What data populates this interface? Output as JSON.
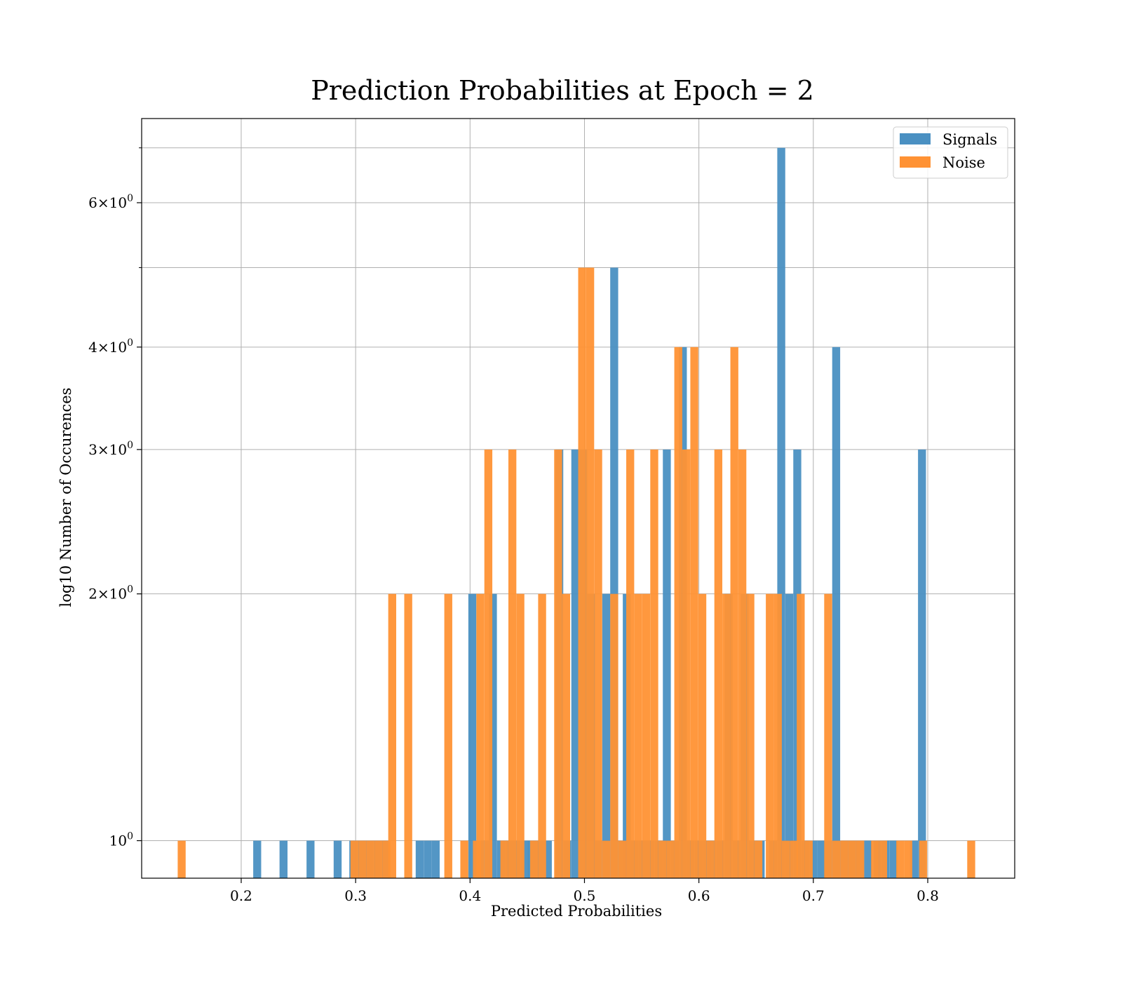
{
  "chart_data": {
    "type": "bar",
    "subtype": "overlapping histogram",
    "title": "Prediction Probabilities at Epoch = 2",
    "xlabel": "Predicted Probabilities",
    "ylabel": "log10 Number of Occurences",
    "yscale": "log",
    "xlim": [
      0.113,
      0.876
    ],
    "ylim": [
      0.9,
      7.6
    ],
    "xticks": [
      "0.2",
      "0.3",
      "0.4",
      "0.5",
      "0.6",
      "0.7",
      "0.8"
    ],
    "yticks": [
      {
        "base": "10",
        "exp": "0",
        "value": 1
      },
      {
        "base": "2×10",
        "exp": "0",
        "value": 2
      },
      {
        "base": "3×10",
        "exp": "0",
        "value": 3
      },
      {
        "base": "4×10",
        "exp": "0",
        "value": 4
      },
      {
        "base": "6×10",
        "exp": "0",
        "value": 6
      }
    ],
    "minor_grid_values": [
      5,
      7
    ],
    "grid": true,
    "legend_position": "top-right",
    "bin_width": 0.00696,
    "series": [
      {
        "name": "Signals",
        "color": "#4a90c2",
        "bins": [
          {
            "x": 0.2105,
            "count": 1
          },
          {
            "x": 0.2335,
            "count": 1
          },
          {
            "x": 0.2571,
            "count": 1
          },
          {
            "x": 0.2808,
            "count": 1
          },
          {
            "x": 0.2945,
            "count": 1
          },
          {
            "x": 0.3015,
            "count": 1
          },
          {
            "x": 0.3085,
            "count": 1
          },
          {
            "x": 0.3155,
            "count": 1
          },
          {
            "x": 0.3225,
            "count": 1
          },
          {
            "x": 0.3525,
            "count": 1
          },
          {
            "x": 0.3595,
            "count": 1
          },
          {
            "x": 0.3665,
            "count": 1
          },
          {
            "x": 0.3985,
            "count": 2
          },
          {
            "x": 0.4055,
            "count": 1
          },
          {
            "x": 0.4125,
            "count": 1
          },
          {
            "x": 0.4165,
            "count": 2
          },
          {
            "x": 0.4235,
            "count": 1
          },
          {
            "x": 0.4305,
            "count": 1
          },
          {
            "x": 0.4375,
            "count": 1
          },
          {
            "x": 0.4445,
            "count": 1
          },
          {
            "x": 0.4505,
            "count": 1
          },
          {
            "x": 0.4575,
            "count": 1
          },
          {
            "x": 0.4645,
            "count": 1
          },
          {
            "x": 0.4745,
            "count": 3
          },
          {
            "x": 0.4815,
            "count": 1
          },
          {
            "x": 0.4885,
            "count": 3
          },
          {
            "x": 0.4955,
            "count": 3
          },
          {
            "x": 0.5025,
            "count": 2
          },
          {
            "x": 0.5085,
            "count": 1
          },
          {
            "x": 0.5155,
            "count": 2
          },
          {
            "x": 0.5225,
            "count": 5
          },
          {
            "x": 0.5295,
            "count": 1
          },
          {
            "x": 0.5335,
            "count": 2
          },
          {
            "x": 0.5405,
            "count": 1
          },
          {
            "x": 0.5475,
            "count": 1
          },
          {
            "x": 0.5545,
            "count": 1
          },
          {
            "x": 0.5615,
            "count": 1
          },
          {
            "x": 0.5685,
            "count": 3
          },
          {
            "x": 0.5755,
            "count": 1
          },
          {
            "x": 0.5825,
            "count": 4
          },
          {
            "x": 0.5895,
            "count": 1
          },
          {
            "x": 0.5965,
            "count": 1
          },
          {
            "x": 0.6035,
            "count": 1
          },
          {
            "x": 0.6085,
            "count": 1
          },
          {
            "x": 0.6155,
            "count": 1
          },
          {
            "x": 0.6225,
            "count": 2
          },
          {
            "x": 0.6295,
            "count": 1
          },
          {
            "x": 0.6365,
            "count": 2
          },
          {
            "x": 0.6435,
            "count": 1
          },
          {
            "x": 0.6505,
            "count": 1
          },
          {
            "x": 0.6615,
            "count": 1
          },
          {
            "x": 0.6685,
            "count": 7
          },
          {
            "x": 0.6755,
            "count": 2
          },
          {
            "x": 0.6825,
            "count": 3
          },
          {
            "x": 0.6895,
            "count": 1
          },
          {
            "x": 0.6965,
            "count": 1
          },
          {
            "x": 0.7035,
            "count": 1
          },
          {
            "x": 0.7095,
            "count": 1
          },
          {
            "x": 0.7165,
            "count": 4
          },
          {
            "x": 0.7235,
            "count": 1
          },
          {
            "x": 0.7305,
            "count": 1
          },
          {
            "x": 0.7375,
            "count": 1
          },
          {
            "x": 0.7445,
            "count": 1
          },
          {
            "x": 0.7525,
            "count": 1
          },
          {
            "x": 0.7595,
            "count": 1
          },
          {
            "x": 0.7665,
            "count": 1
          },
          {
            "x": 0.7845,
            "count": 1
          },
          {
            "x": 0.7915,
            "count": 3
          }
        ]
      },
      {
        "name": "Noise",
        "color": "#ff9234",
        "bins": [
          {
            "x": 0.1445,
            "count": 1
          },
          {
            "x": 0.2955,
            "count": 1
          },
          {
            "x": 0.3025,
            "count": 1
          },
          {
            "x": 0.3095,
            "count": 1
          },
          {
            "x": 0.3165,
            "count": 1
          },
          {
            "x": 0.3235,
            "count": 1
          },
          {
            "x": 0.3285,
            "count": 2
          },
          {
            "x": 0.3425,
            "count": 2
          },
          {
            "x": 0.3775,
            "count": 2
          },
          {
            "x": 0.3915,
            "count": 1
          },
          {
            "x": 0.4025,
            "count": 1
          },
          {
            "x": 0.4055,
            "count": 2
          },
          {
            "x": 0.4125,
            "count": 3
          },
          {
            "x": 0.4265,
            "count": 1
          },
          {
            "x": 0.4335,
            "count": 3
          },
          {
            "x": 0.4405,
            "count": 2
          },
          {
            "x": 0.4525,
            "count": 1
          },
          {
            "x": 0.4595,
            "count": 2
          },
          {
            "x": 0.4735,
            "count": 3
          },
          {
            "x": 0.4805,
            "count": 2
          },
          {
            "x": 0.4945,
            "count": 5
          },
          {
            "x": 0.5015,
            "count": 5
          },
          {
            "x": 0.5085,
            "count": 3
          },
          {
            "x": 0.5155,
            "count": 1
          },
          {
            "x": 0.5225,
            "count": 2
          },
          {
            "x": 0.5295,
            "count": 1
          },
          {
            "x": 0.5365,
            "count": 3
          },
          {
            "x": 0.5435,
            "count": 2
          },
          {
            "x": 0.5505,
            "count": 2
          },
          {
            "x": 0.5575,
            "count": 3
          },
          {
            "x": 0.5645,
            "count": 1
          },
          {
            "x": 0.5715,
            "count": 1
          },
          {
            "x": 0.5785,
            "count": 4
          },
          {
            "x": 0.5855,
            "count": 3
          },
          {
            "x": 0.5925,
            "count": 4
          },
          {
            "x": 0.5995,
            "count": 2
          },
          {
            "x": 0.6065,
            "count": 1
          },
          {
            "x": 0.6135,
            "count": 3
          },
          {
            "x": 0.6205,
            "count": 2
          },
          {
            "x": 0.6275,
            "count": 4
          },
          {
            "x": 0.6345,
            "count": 3
          },
          {
            "x": 0.6415,
            "count": 2
          },
          {
            "x": 0.6485,
            "count": 1
          },
          {
            "x": 0.6585,
            "count": 2
          },
          {
            "x": 0.6655,
            "count": 2
          },
          {
            "x": 0.6725,
            "count": 1
          },
          {
            "x": 0.6795,
            "count": 1
          },
          {
            "x": 0.6855,
            "count": 2
          },
          {
            "x": 0.6925,
            "count": 1
          },
          {
            "x": 0.7095,
            "count": 2
          },
          {
            "x": 0.7165,
            "count": 1
          },
          {
            "x": 0.7235,
            "count": 1
          },
          {
            "x": 0.7305,
            "count": 1
          },
          {
            "x": 0.7375,
            "count": 1
          },
          {
            "x": 0.7505,
            "count": 1
          },
          {
            "x": 0.7575,
            "count": 1
          },
          {
            "x": 0.7725,
            "count": 1
          },
          {
            "x": 0.7795,
            "count": 1
          },
          {
            "x": 0.7925,
            "count": 1
          },
          {
            "x": 0.8345,
            "count": 1
          }
        ]
      }
    ]
  }
}
